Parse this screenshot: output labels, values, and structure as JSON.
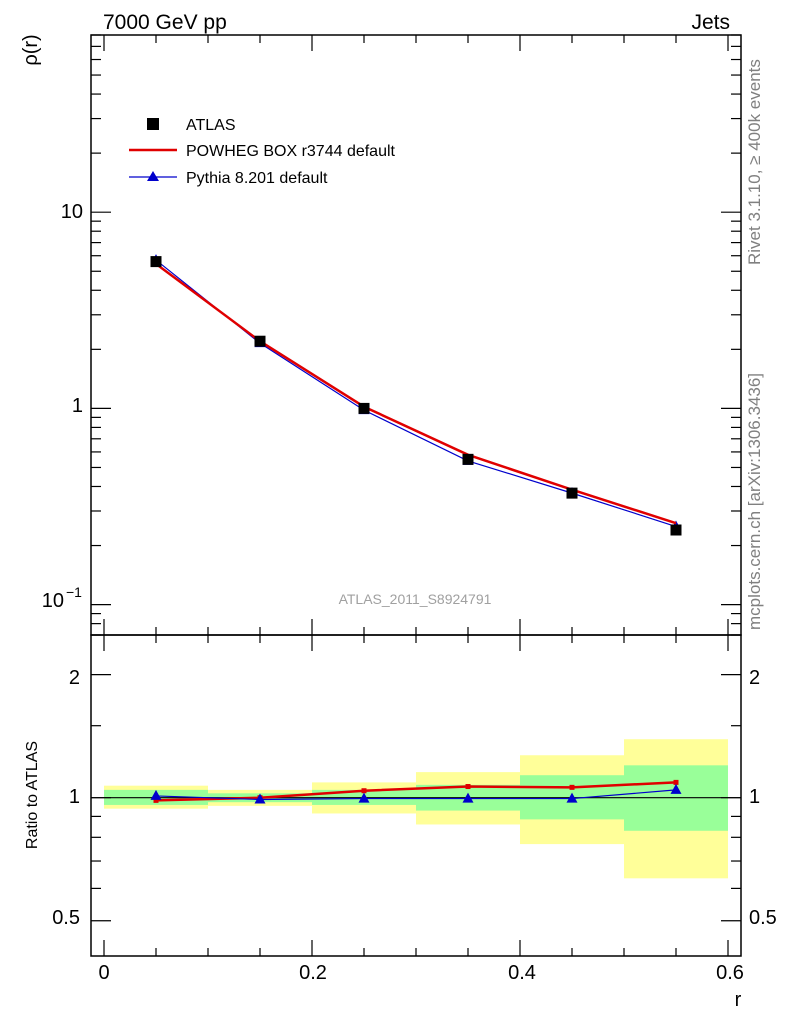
{
  "header": {
    "energy_label": "7000 GeV pp",
    "process_label": "Jets"
  },
  "side_text": {
    "rivet": "Rivet 3.1.10, ≥ 400k events",
    "mcplots": "mcplots.cern.ch [arXiv:1306.3436]"
  },
  "chart_data": [
    {
      "type": "line",
      "panel": "main",
      "title": "",
      "xlabel": "",
      "ylabel": "ρ(r)",
      "yscale": "log",
      "xlim": [
        -0.0125,
        0.6125
      ],
      "ylim": [
        0.07,
        80
      ],
      "ytick_labels": {
        "ten": "10",
        "one": "1",
        "tenth_base": "10",
        "tenth_exp": "−1"
      },
      "watermark": "ATLAS_2011_S8924791",
      "x": [
        0.05,
        0.15,
        0.25,
        0.35,
        0.45,
        0.55
      ],
      "series": [
        {
          "name": "ATLAS",
          "values": [
            5.6,
            2.2,
            1.0,
            0.55,
            0.37,
            0.24
          ],
          "color": "#000000",
          "marker": "square"
        },
        {
          "name": "POWHEG BOX r3744 default",
          "values": [
            5.45,
            2.2,
            1.02,
            0.58,
            0.385,
            0.26
          ],
          "color": "#e00000",
          "marker": "none"
        },
        {
          "name": "Pythia 8.201 default",
          "values": [
            5.7,
            2.15,
            0.98,
            0.54,
            0.37,
            0.25
          ],
          "color": "#0000cc",
          "marker": "triangle"
        }
      ],
      "legend": "top-left"
    },
    {
      "type": "line",
      "panel": "ratio",
      "title": "",
      "xlabel": "r",
      "ylabel": "Ratio to ATLAS",
      "yscale": "log",
      "xlim": [
        -0.0125,
        0.6125
      ],
      "ylim": [
        0.41,
        2.5
      ],
      "xtick_labels": [
        "0",
        "0.2",
        "0.4",
        "0.6"
      ],
      "ytick_labels": [
        "0.5",
        "1",
        "2"
      ],
      "x": [
        0.05,
        0.15,
        0.25,
        0.35,
        0.45,
        0.55
      ],
      "bins": [
        [
          0,
          0.1
        ],
        [
          0.1,
          0.2
        ],
        [
          0.2,
          0.3
        ],
        [
          0.3,
          0.4
        ],
        [
          0.4,
          0.5
        ],
        [
          0.5,
          0.6
        ]
      ],
      "bands": {
        "stat_color": "#99ff99",
        "total_color": "#ffff99",
        "stat": [
          [
            0.96,
            1.045
          ],
          [
            0.975,
            1.025
          ],
          [
            0.96,
            1.045
          ],
          [
            0.93,
            1.075
          ],
          [
            0.885,
            1.135
          ],
          [
            0.83,
            1.2
          ]
        ],
        "total": [
          [
            0.94,
            1.07
          ],
          [
            0.955,
            1.045
          ],
          [
            0.915,
            1.09
          ],
          [
            0.86,
            1.155
          ],
          [
            0.77,
            1.27
          ],
          [
            0.635,
            1.39
          ]
        ]
      },
      "series": [
        {
          "name": "POWHEG BOX r3744 default",
          "values": [
            0.985,
            1.0,
            1.04,
            1.065,
            1.06,
            1.09
          ],
          "color": "#e00000",
          "marker": "small-square"
        },
        {
          "name": "Pythia 8.201 default",
          "values": [
            1.01,
            0.99,
            0.995,
            0.995,
            0.995,
            1.045
          ],
          "color": "#0000cc",
          "marker": "triangle"
        }
      ]
    }
  ]
}
